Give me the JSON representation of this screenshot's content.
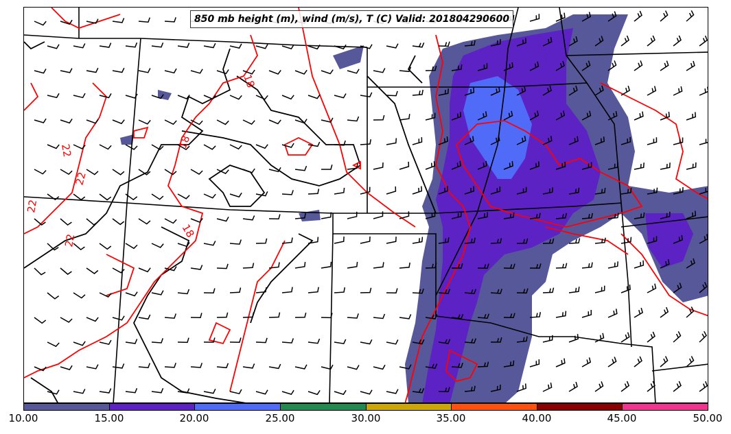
{
  "title": "850 mb height (m), wind (m/s), T (C) Valid: 201804290600",
  "colorbar": {
    "ticks": [
      "10.00",
      "15.00",
      "20.00",
      "25.00",
      "30.00",
      "35.00",
      "40.00",
      "45.00",
      "50.00"
    ],
    "colors": [
      "#57589a",
      "#5c22c4",
      "#4f6bf7",
      "#228a4e",
      "#cca70a",
      "#ff5010",
      "#8b0000",
      "#f03490"
    ]
  },
  "contour_labels": [
    "18",
    "18",
    "22",
    "22",
    "22",
    "22",
    "18"
  ],
  "colors": {
    "temperature_contour": "#ff0000",
    "boundary": "#000000",
    "wind_barb": "#000000"
  },
  "icons": [
    "wind-barb-icon"
  ]
}
